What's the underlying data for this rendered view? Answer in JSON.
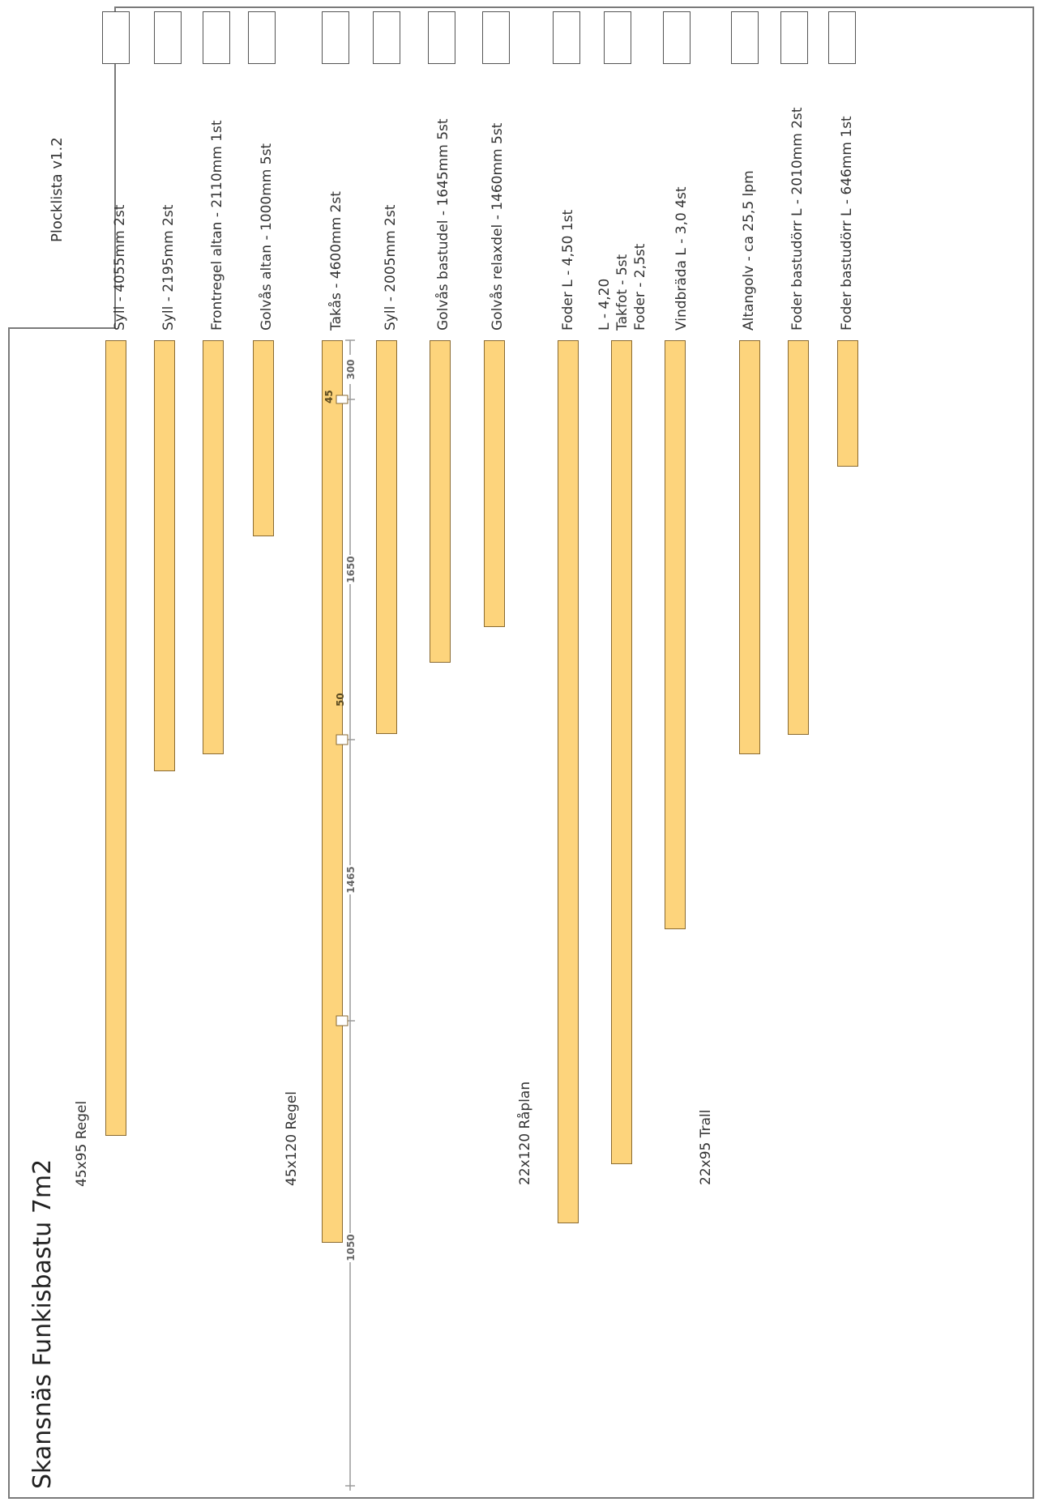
{
  "document": {
    "title": "Skansnäs Funkisbastu 7m2",
    "version_label": "Plocklista v1.2"
  },
  "groups": [
    {
      "label": "45x95 Regel"
    },
    {
      "label": "45x120 Regel"
    },
    {
      "label": "22x120 Råplan"
    },
    {
      "label": "22x95 Trall"
    }
  ],
  "items": [
    {
      "label": "Syll - 4055mm 2st",
      "length_mm": 4055,
      "group": "45x95 Regel"
    },
    {
      "label": "Syll - 2195mm 2st",
      "length_mm": 2195,
      "group": "45x95 Regel"
    },
    {
      "label": "Frontregel altan - 2110mm 1st",
      "length_mm": 2110,
      "group": "45x95 Regel"
    },
    {
      "label": "Golvås altan - 1000mm 5st",
      "length_mm": 1000,
      "group": "45x95 Regel"
    },
    {
      "label": "Takås - 4600mm 2st",
      "length_mm": 4600,
      "group": "45x120 Regel"
    },
    {
      "label": "Syll - 2005mm 2st",
      "length_mm": 2005,
      "group": "45x120 Regel"
    },
    {
      "label": "Golvås bastudel - 1645mm 5st",
      "length_mm": 1645,
      "group": "45x120 Regel"
    },
    {
      "label": "Golvås relaxdel - 1460mm 5st",
      "length_mm": 1460,
      "group": "45x120 Regel"
    },
    {
      "label": "Foder L - 4,50 1st",
      "length_mm": 4500,
      "group": "22x120 Råplan"
    },
    {
      "label_lines": [
        "L - 4,20",
        "Takfot - 5st",
        "Foder - 2,5st"
      ],
      "length_mm": 4200,
      "group": "22x120 Råplan"
    },
    {
      "label": "Vindbräda L - 3,0 4st",
      "length_mm": 3000,
      "group": "22x120 Råplan"
    },
    {
      "label": "Altangolv - ca 25,5 lpm",
      "length_mm": 2110,
      "group": "22x95 Trall"
    },
    {
      "label": "Foder bastudörr L - 2010mm 2st",
      "length_mm": 2010,
      "group": "22x95 Trall"
    },
    {
      "label": "Foder bastudörr L - 646mm 1st",
      "length_mm": 646,
      "group": "22x95 Trall"
    }
  ],
  "takas_dimensions": {
    "segments": [
      "300",
      "1650",
      "1465",
      "1050"
    ],
    "notches": [
      "45",
      "50"
    ]
  }
}
